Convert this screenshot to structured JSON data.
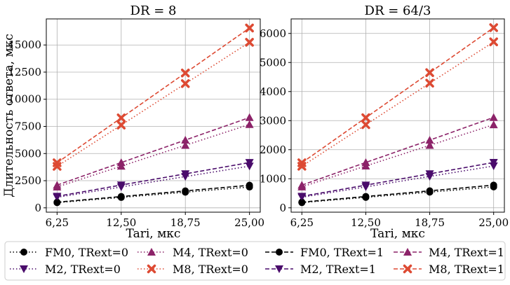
{
  "chart_data": [
    {
      "type": "line",
      "title": "DR = 8",
      "xlabel": "Tari, мкс",
      "ylabel": "Длительность ответа, мкс",
      "x": [
        6.25,
        12.5,
        18.75,
        25.0
      ],
      "xticks": [
        "6,25",
        "12,50",
        "18,75",
        "25,00"
      ],
      "yticks": [
        0,
        2500,
        5000,
        7500,
        10000,
        12500,
        15000
      ],
      "ylim": [
        -400,
        17400
      ],
      "grid": true,
      "series": [
        {
          "name": "FM0, TRext=0",
          "color": "#000000",
          "dash": "dotted",
          "marker": "circle",
          "values": [
            480,
            960,
            1440,
            1920
          ]
        },
        {
          "name": "M2, TRext=0",
          "color": "#4a0c6b",
          "dash": "dotted",
          "marker": "triangle-down",
          "values": [
            970,
            1920,
            2880,
            3840
          ]
        },
        {
          "name": "M4, TRext=0",
          "color": "#8c2369",
          "dash": "dotted",
          "marker": "triangle-up",
          "values": [
            1920,
            3840,
            5760,
            7680
          ]
        },
        {
          "name": "M8, TRext=0",
          "color": "#dd4a33",
          "dash": "dotted",
          "marker": "x",
          "values": [
            3820,
            7620,
            11440,
            15250
          ]
        },
        {
          "name": "FM0, TRext=1",
          "color": "#000000",
          "dash": "dashed",
          "marker": "circle",
          "values": [
            520,
            1040,
            1560,
            2080
          ]
        },
        {
          "name": "M2, TRext=1",
          "color": "#4a0c6b",
          "dash": "dashed",
          "marker": "triangle-down",
          "values": [
            1060,
            2100,
            3130,
            4170
          ]
        },
        {
          "name": "M4, TRext=1",
          "color": "#8c2369",
          "dash": "dashed",
          "marker": "triangle-up",
          "values": [
            2090,
            4170,
            6240,
            8320
          ]
        },
        {
          "name": "M8, TRext=1",
          "color": "#dd4a33",
          "dash": "dashed",
          "marker": "x",
          "values": [
            4150,
            8280,
            12420,
            16560
          ]
        }
      ]
    },
    {
      "type": "line",
      "title": "DR = 64/3",
      "xlabel": "Tari, мкс",
      "ylabel": "",
      "x": [
        6.25,
        12.5,
        18.75,
        25.0
      ],
      "xticks": [
        "6,25",
        "12,50",
        "18,75",
        "25,00"
      ],
      "yticks": [
        0,
        1000,
        2000,
        3000,
        4000,
        5000,
        6000
      ],
      "ylim": [
        -150,
        6500
      ],
      "grid": true,
      "series": [
        {
          "name": "FM0, TRext=0",
          "color": "#000000",
          "dash": "dotted",
          "marker": "circle",
          "values": [
            180,
            360,
            540,
            720
          ]
        },
        {
          "name": "M2, TRext=0",
          "color": "#4a0c6b",
          "dash": "dotted",
          "marker": "triangle-down",
          "values": [
            365,
            720,
            1080,
            1440
          ]
        },
        {
          "name": "M4, TRext=0",
          "color": "#8c2369",
          "dash": "dotted",
          "marker": "triangle-up",
          "values": [
            720,
            1440,
            2150,
            2860
          ]
        },
        {
          "name": "M8, TRext=0",
          "color": "#dd4a33",
          "dash": "dotted",
          "marker": "x",
          "values": [
            1430,
            2860,
            4290,
            5710
          ]
        },
        {
          "name": "FM0, TRext=1",
          "color": "#000000",
          "dash": "dashed",
          "marker": "circle",
          "values": [
            195,
            390,
            585,
            780
          ]
        },
        {
          "name": "M2, TRext=1",
          "color": "#4a0c6b",
          "dash": "dashed",
          "marker": "triangle-down",
          "values": [
            395,
            780,
            1170,
            1560
          ]
        },
        {
          "name": "M4, TRext=1",
          "color": "#8c2369",
          "dash": "dashed",
          "marker": "triangle-up",
          "values": [
            780,
            1560,
            2330,
            3110
          ]
        },
        {
          "name": "M8, TRext=1",
          "color": "#dd4a33",
          "dash": "dashed",
          "marker": "x",
          "values": [
            1550,
            3100,
            4650,
            6200
          ]
        }
      ]
    }
  ],
  "legend": {
    "placement": "bottom",
    "order": [
      0,
      1,
      2,
      3,
      4,
      5,
      6,
      7
    ]
  }
}
